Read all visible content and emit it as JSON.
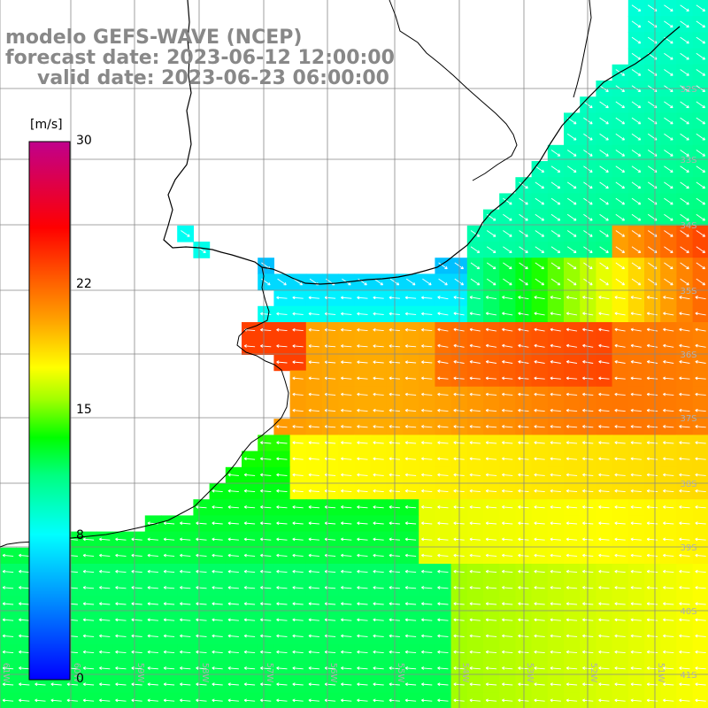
{
  "title": {
    "model": "modelo GEFS-WAVE (NCEP)",
    "forecast": "forecast date: 2023-06-12 12:00:00",
    "valid": "valid date: 2023-06-23 06:00:00"
  },
  "colorbar": {
    "unit": "[m/s]",
    "min": 0,
    "max": 30,
    "ticks": [
      "30",
      "22",
      "15",
      "8",
      "0"
    ],
    "tick_values": [
      30,
      22,
      15,
      8,
      0
    ]
  },
  "grid": {
    "lat_labels": [
      "32S",
      "33S",
      "34S",
      "35S",
      "36S",
      "37S",
      "38S",
      "39S",
      "40S",
      "41S"
    ],
    "lon_labels": [
      "61W",
      "60W",
      "59W",
      "58W",
      "57W",
      "56W",
      "55W",
      "54W",
      "53W",
      "52W",
      "51W"
    ]
  },
  "colors": {
    "land": "#ffffff",
    "grid_line": "#888888",
    "coast": "#000000",
    "arrow": "#ffffff"
  },
  "map_layers": [
    "wind-speed-field",
    "wind-direction-arrows",
    "coastline",
    "lat-lon-grid"
  ]
}
